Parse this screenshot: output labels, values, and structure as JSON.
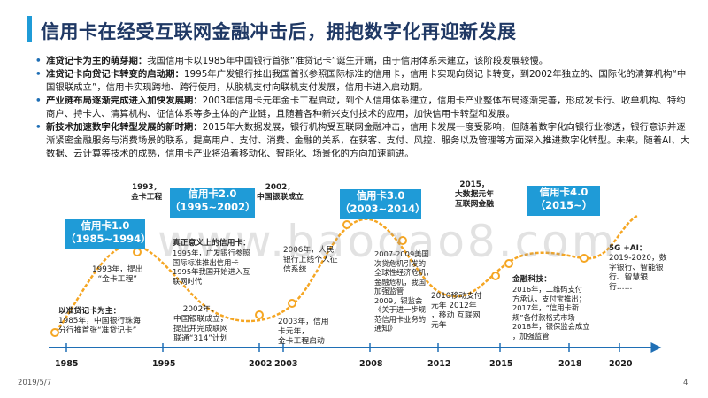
{
  "title": "信用卡在经受互联网金融冲击后，拥抱数字化再迎新发展",
  "bullets": [
    {
      "heading": "准贷记卡为主的萌芽期：",
      "text": "我国信用卡以1985年中国银行首张“准贷记卡”诞生开端，由于信用体系未建立，该阶段发展较慢。"
    },
    {
      "heading": "准贷记卡向贷记卡转变的启动期：",
      "text": "1995年广发银行推出我国首张参照国际标准的信用卡，信用卡实现向贷记卡转变，到2002年独立的、国际化的清算机构“中国银联成立”，信用卡实现跨地、跨行使用，从脱机支付向联机支付发展，信用卡进入启动期。"
    },
    {
      "heading": "产业链布局逐渐完成进入加快发展期：",
      "text": "2003年信用卡元年金卡工程启动，到个人信用体系建立，信用卡产业整体布局逐渐完善，形成发卡行、收单机构、特约商户、持卡人、清算机构、征信体系等多主体的产业链，且随着各种新兴支付技术的应用，加快信用卡转型和发展。"
    },
    {
      "heading": "新技术加速数字化转型发展的新时期：",
      "text": "2015年大数据发展，银行机构受互联网金融冲击，信用卡发展一度受影响，但随着数字化向银行业渗透，银行意识并逐渐紧密金融服务与消费场景的联系，提高用户、支付、消费、金融的关系，在获客、支付、风控、服务以及管理等方面深入推进数字化转型。未来，随着AI、大数据、云计算等技术的成熟，信用卡产业将沿着移动化、智能化、场景化的方向加速前进。"
    }
  ],
  "timeline": {
    "years": [
      "1985",
      "1995",
      "2002",
      "2003",
      "2008",
      "2012",
      "2015",
      "2018",
      "2020"
    ],
    "cards": [
      {
        "line1": "信用卡1.0",
        "line2": "（1985~1994）"
      },
      {
        "line1": "信用卡2.0",
        "line2": "（1995~2002）"
      },
      {
        "line1": "信用卡3.0",
        "line2": "（2003~2014）"
      },
      {
        "line1": "信用卡4.0",
        "line2": "（2015~）"
      }
    ],
    "annotations": {
      "a1993": "1993年，提出\n“金卡工程”",
      "a1985_head": "以准贷记卡为主：",
      "a1985": "1985年，中国银行珠海\n分行推首张“准贷记卡”",
      "a1993_top": "1993，\n金卡工程",
      "a1995_head": "真正意义上的信用卡：",
      "a1995": "1995年，广发银行参照\n国际标准推出信用卡\n1995年我国开始进入互\n联网时代",
      "a2002_top": "2002，\n中国银联成立",
      "a2002": "2002年，\n中国银联成立，\n提出并完成联网\n联通“314”计划",
      "a2003": "2003年，信用\n卡元年，\n金卡工程启动",
      "a2006": "2006年，人民\n银行上线个人征\n信系统",
      "a2007": "2007-2009美国\n次贷危机引发的\n全球性经济危机，\n金融危机，我国\n加强监管\n2009，银监会\n《关于进一步规\n范信用卡业务的\n通知》",
      "a2010": "2010移动支付\n元年 2012年\n，移动 互联网\n元年",
      "a2015_top": "2015，\n大数据元年\n互联网金融",
      "a2016_head": "金融科技：",
      "a2016": "2016年，二维码支付\n方承认，支付宝推出；\n2017年，“信用卡新\n规”备付款格式市场\n2018年，银保监会成立\n，加强监管",
      "a2020_head": "5G +AI：",
      "a2020": "2019-2020，数\n字银行、智能银\n行、智慧银\n行……"
    }
  },
  "watermark": "www.baogao8.com",
  "footer": {
    "date": "2019/5/7",
    "page": "4"
  },
  "colors": {
    "accent": "#1f9bd7",
    "curve": "#f5a623",
    "title": "#1f3864"
  }
}
